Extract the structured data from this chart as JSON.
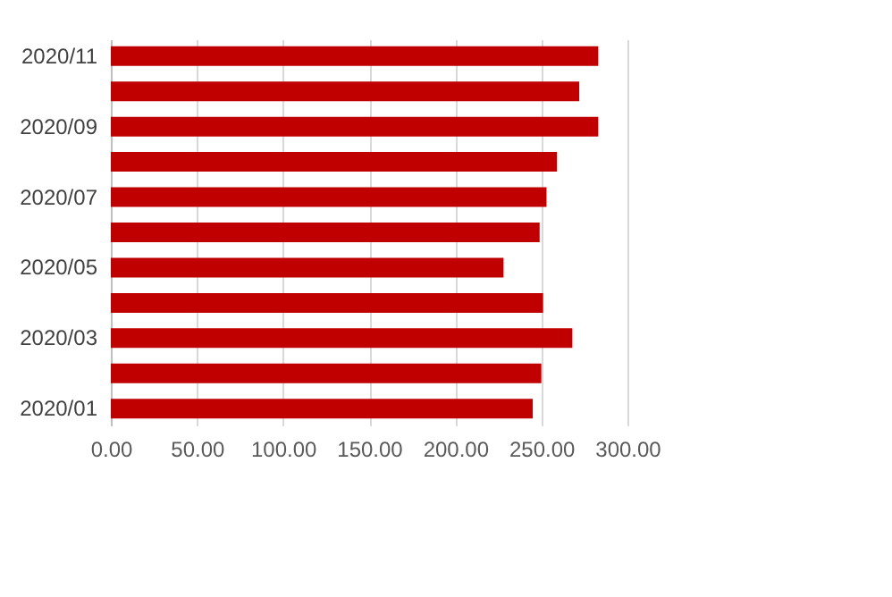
{
  "chart_data": {
    "type": "bar",
    "orientation": "horizontal",
    "categories": [
      "2020/11",
      null,
      "2020/09",
      null,
      "2020/07",
      null,
      "2020/05",
      null,
      "2020/03",
      null,
      "2020/01"
    ],
    "values": [
      283,
      272,
      283,
      259,
      253,
      249,
      228,
      251,
      268,
      250,
      245
    ],
    "color": "#c00000",
    "xlim": [
      0,
      300
    ],
    "xticks": [
      {
        "value": 0,
        "label": "0.00"
      },
      {
        "value": 50,
        "label": "50.00"
      },
      {
        "value": 100,
        "label": "100.00"
      },
      {
        "value": 150,
        "label": "150.00"
      },
      {
        "value": 200,
        "label": "200.00"
      },
      {
        "value": 250,
        "label": "250.00"
      },
      {
        "value": 300,
        "label": "300.00"
      }
    ],
    "grid": "x"
  }
}
